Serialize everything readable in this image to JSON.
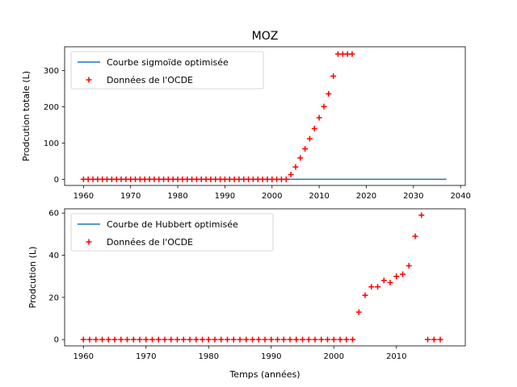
{
  "figure_title": "MOZ",
  "chart_data": [
    {
      "type": "line+scatter",
      "title": "MOZ",
      "xlabel": "",
      "ylabel": "Prodcution totale (L)",
      "xlim": [
        1956,
        2041
      ],
      "ylim": [
        -17,
        366
      ],
      "xticks": [
        1960,
        1970,
        1980,
        1990,
        2000,
        2010,
        2020,
        2030,
        2040
      ],
      "yticks": [
        0,
        100,
        200,
        300
      ],
      "legend": {
        "position": "upper-left",
        "entries": [
          {
            "label": "Courbe sigmoïde optimisée",
            "kind": "line",
            "color": "#1f77b4"
          },
          {
            "label": "Données de l'OCDE",
            "kind": "marker",
            "color": "#ff0000"
          }
        ]
      },
      "line": {
        "color": "#1f77b4",
        "x": [
          1960,
          2037
        ],
        "y": [
          0,
          0
        ]
      },
      "scatter": {
        "color": "#ff0000",
        "x": [
          1960,
          1961,
          1962,
          1963,
          1964,
          1965,
          1966,
          1967,
          1968,
          1969,
          1970,
          1971,
          1972,
          1973,
          1974,
          1975,
          1976,
          1977,
          1978,
          1979,
          1980,
          1981,
          1982,
          1983,
          1984,
          1985,
          1986,
          1987,
          1988,
          1989,
          1990,
          1991,
          1992,
          1993,
          1994,
          1995,
          1996,
          1997,
          1998,
          1999,
          2000,
          2001,
          2002,
          2003,
          2004,
          2005,
          2006,
          2007,
          2008,
          2009,
          2010,
          2011,
          2012,
          2013,
          2014,
          2015,
          2016,
          2017
        ],
        "y": [
          0,
          0,
          0,
          0,
          0,
          0,
          0,
          0,
          0,
          0,
          0,
          0,
          0,
          0,
          0,
          0,
          0,
          0,
          0,
          0,
          0,
          0,
          0,
          0,
          0,
          0,
          0,
          0,
          0,
          0,
          0,
          0,
          0,
          0,
          0,
          0,
          0,
          0,
          0,
          0,
          0,
          0,
          0,
          0,
          13,
          34,
          59,
          84,
          112,
          140,
          170,
          201,
          236,
          285,
          346,
          346,
          346,
          346
        ]
      }
    },
    {
      "type": "line+scatter",
      "title": "",
      "xlabel": "Temps (années)",
      "ylabel": "Prodcution (L)",
      "xlim": [
        1957,
        2021
      ],
      "ylim": [
        -3,
        62
      ],
      "xticks": [
        1960,
        1970,
        1980,
        1990,
        2000,
        2010
      ],
      "yticks": [
        0,
        20,
        40,
        60
      ],
      "legend": {
        "position": "upper-left",
        "entries": [
          {
            "label": "Courbe de Hubbert optimisée",
            "kind": "line",
            "color": "#1f77b4"
          },
          {
            "label": "Données de l'OCDE",
            "kind": "marker",
            "color": "#ff0000"
          }
        ]
      },
      "line": {
        "color": "#1f77b4",
        "x": [],
        "y": []
      },
      "scatter": {
        "color": "#ff0000",
        "x": [
          1960,
          1961,
          1962,
          1963,
          1964,
          1965,
          1966,
          1967,
          1968,
          1969,
          1970,
          1971,
          1972,
          1973,
          1974,
          1975,
          1976,
          1977,
          1978,
          1979,
          1980,
          1981,
          1982,
          1983,
          1984,
          1985,
          1986,
          1987,
          1988,
          1989,
          1990,
          1991,
          1992,
          1993,
          1994,
          1995,
          1996,
          1997,
          1998,
          1999,
          2000,
          2001,
          2002,
          2003,
          2004,
          2005,
          2006,
          2007,
          2008,
          2009,
          2010,
          2011,
          2012,
          2013,
          2014,
          2015,
          2016,
          2017
        ],
        "y": [
          0,
          0,
          0,
          0,
          0,
          0,
          0,
          0,
          0,
          0,
          0,
          0,
          0,
          0,
          0,
          0,
          0,
          0,
          0,
          0,
          0,
          0,
          0,
          0,
          0,
          0,
          0,
          0,
          0,
          0,
          0,
          0,
          0,
          0,
          0,
          0,
          0,
          0,
          0,
          0,
          0,
          0,
          0,
          0,
          13,
          21,
          25,
          25,
          28,
          27,
          30,
          31,
          35,
          49,
          59,
          0,
          0,
          0
        ]
      }
    }
  ]
}
